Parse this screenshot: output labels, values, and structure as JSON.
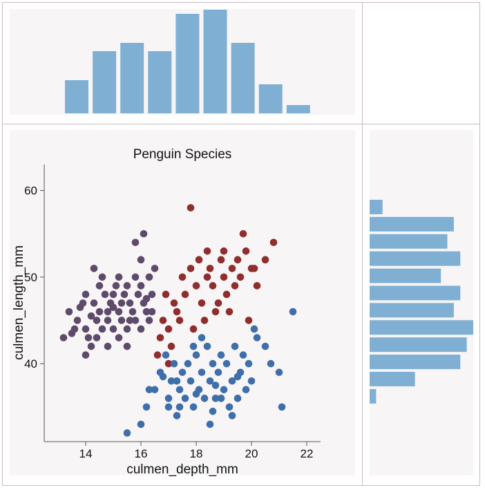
{
  "chart_data": [
    {
      "type": "bar",
      "panel": "top-marginal-histogram",
      "values": [
        8,
        15,
        17,
        15,
        24,
        25,
        17,
        7,
        2
      ]
    },
    {
      "type": "bar",
      "panel": "right-marginal-histogram",
      "orientation": "horizontal",
      "values": [
        2,
        13,
        12,
        14,
        11,
        14,
        13,
        16,
        15,
        14,
        7,
        1
      ]
    },
    {
      "type": "scatter",
      "panel": "main-scatter",
      "title": "Penguin Species",
      "xlabel": "culmen_depth_mm",
      "ylabel": "culmen_length_mm",
      "xlim": [
        12.5,
        22.5
      ],
      "ylim": [
        31,
        63
      ],
      "xticks": [
        "14",
        "16",
        "18",
        "20",
        "22"
      ],
      "yticks": [
        "40",
        "50",
        "60"
      ],
      "series": [
        {
          "color": "#5e4a6b",
          "points": [
            [
              13.2,
              43
            ],
            [
              13.4,
              46
            ],
            [
              13.6,
              44
            ],
            [
              13.8,
              46.5
            ],
            [
              13.7,
              45
            ],
            [
              13.9,
              47
            ],
            [
              14.0,
              48
            ],
            [
              14.0,
              44
            ],
            [
              14.1,
              43
            ],
            [
              14.2,
              42
            ],
            [
              14.2,
              45.5
            ],
            [
              14.3,
              47
            ],
            [
              14.4,
              43
            ],
            [
              14.5,
              46
            ],
            [
              14.5,
              49
            ],
            [
              14.6,
              44
            ],
            [
              14.6,
              50
            ],
            [
              14.7,
              48
            ],
            [
              14.8,
              46
            ],
            [
              14.8,
              45
            ],
            [
              14.9,
              47
            ],
            [
              15.0,
              44
            ],
            [
              15.0,
              48
            ],
            [
              15.1,
              49
            ],
            [
              15.2,
              46
            ],
            [
              15.2,
              50
            ],
            [
              15.3,
              47
            ],
            [
              15.3,
              45
            ],
            [
              15.4,
              48
            ],
            [
              15.5,
              44
            ],
            [
              15.5,
              49
            ],
            [
              15.6,
              47
            ],
            [
              15.7,
              46
            ],
            [
              15.8,
              50
            ],
            [
              15.8,
              45
            ],
            [
              15.9,
              48
            ],
            [
              16.0,
              49
            ],
            [
              16.0,
              52
            ],
            [
              16.1,
              47
            ],
            [
              16.2,
              46
            ],
            [
              16.3,
              50
            ],
            [
              16.3,
              45
            ],
            [
              16.4,
              48
            ],
            [
              16.5,
              51
            ],
            [
              16.1,
              55
            ],
            [
              15.8,
              54
            ],
            [
              14.3,
              51
            ],
            [
              14.0,
              41
            ],
            [
              14.8,
              42
            ],
            [
              15.2,
              43
            ],
            [
              15.5,
              42
            ],
            [
              16.0,
              44
            ],
            [
              13.5,
              43.5
            ],
            [
              14.4,
              45
            ],
            [
              15.0,
              46.5
            ],
            [
              15.6,
              45
            ],
            [
              16.2,
              47.5
            ],
            [
              16.4,
              46
            ]
          ]
        },
        {
          "color": "#902d2d",
          "points": [
            [
              16.6,
              41
            ],
            [
              16.7,
              43
            ],
            [
              16.8,
              45
            ],
            [
              17.0,
              44
            ],
            [
              17.2,
              47
            ],
            [
              17.3,
              46
            ],
            [
              17.5,
              50
            ],
            [
              17.6,
              48
            ],
            [
              17.8,
              51
            ],
            [
              17.8,
              58
            ],
            [
              18.0,
              49
            ],
            [
              18.1,
              52
            ],
            [
              18.2,
              47
            ],
            [
              18.3,
              45
            ],
            [
              18.4,
              50
            ],
            [
              18.5,
              51
            ],
            [
              18.6,
              49
            ],
            [
              18.7,
              46
            ],
            [
              18.9,
              52
            ],
            [
              19.0,
              50
            ],
            [
              19.1,
              48
            ],
            [
              19.3,
              51
            ],
            [
              19.4,
              49
            ],
            [
              19.5,
              52
            ],
            [
              19.6,
              50
            ],
            [
              19.7,
              55
            ],
            [
              19.8,
              53
            ],
            [
              20.0,
              51
            ],
            [
              20.2,
              49
            ],
            [
              20.5,
              52
            ],
            [
              20.8,
              54
            ],
            [
              17.1,
              42
            ],
            [
              17.4,
              45
            ],
            [
              17.9,
              44
            ],
            [
              18.8,
              47
            ],
            [
              19.2,
              46
            ],
            [
              19.9,
              45
            ],
            [
              16.9,
              48
            ],
            [
              17.0,
              40
            ],
            [
              18.4,
              53
            ],
            [
              19.0,
              53
            ],
            [
              20.1,
              51
            ]
          ]
        },
        {
          "color": "#3f6faa",
          "points": [
            [
              15.5,
              32
            ],
            [
              16.0,
              33
            ],
            [
              16.2,
              35
            ],
            [
              16.5,
              37
            ],
            [
              16.7,
              39
            ],
            [
              16.9,
              41
            ],
            [
              17.0,
              35
            ],
            [
              17.1,
              38
            ],
            [
              17.2,
              40
            ],
            [
              17.3,
              34
            ],
            [
              17.4,
              37
            ],
            [
              17.5,
              39
            ],
            [
              17.6,
              36
            ],
            [
              17.7,
              40
            ],
            [
              17.8,
              38
            ],
            [
              17.9,
              35
            ],
            [
              18.0,
              41
            ],
            [
              18.1,
              37
            ],
            [
              18.2,
              39
            ],
            [
              18.3,
              36
            ],
            [
              18.4,
              42
            ],
            [
              18.5,
              38
            ],
            [
              18.6,
              40
            ],
            [
              18.7,
              36
            ],
            [
              18.8,
              39
            ],
            [
              18.9,
              41
            ],
            [
              19.0,
              37
            ],
            [
              19.1,
              40
            ],
            [
              19.2,
              35
            ],
            [
              19.3,
              38
            ],
            [
              19.4,
              42
            ],
            [
              19.5,
              36
            ],
            [
              19.6,
              39
            ],
            [
              19.7,
              41
            ],
            [
              19.8,
              37
            ],
            [
              19.9,
              40
            ],
            [
              20.0,
              38
            ],
            [
              20.2,
              43
            ],
            [
              20.5,
              42
            ],
            [
              20.7,
              40
            ],
            [
              21.0,
              39
            ],
            [
              21.1,
              35
            ],
            [
              21.5,
              46
            ],
            [
              18.5,
              33
            ],
            [
              17.4,
              35
            ],
            [
              17.0,
              36
            ],
            [
              16.3,
              37
            ],
            [
              18.9,
              36
            ],
            [
              19.3,
              34
            ],
            [
              18.2,
              43
            ],
            [
              17.9,
              42
            ],
            [
              18.7,
              37.5
            ],
            [
              19.5,
              38.5
            ],
            [
              17.3,
              38
            ],
            [
              18.0,
              36.5
            ],
            [
              16.8,
              38.5
            ],
            [
              20.1,
              44
            ],
            [
              18.6,
              34.5
            ]
          ]
        }
      ]
    }
  ]
}
